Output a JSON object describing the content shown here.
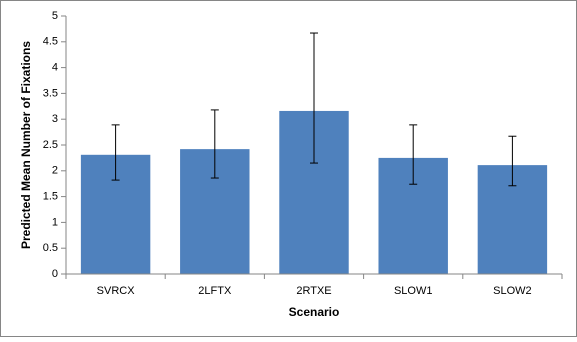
{
  "chart_data": {
    "type": "bar",
    "xlabel": "Scenario",
    "ylabel": "Predicted Mean Number of Fixations",
    "categories": [
      "SVRCX",
      "2LFTX",
      "2RTXE",
      "SLOW1",
      "SLOW2"
    ],
    "values": [
      2.31,
      2.42,
      3.16,
      2.25,
      2.11
    ],
    "error_low": [
      1.82,
      1.86,
      2.15,
      1.74,
      1.71
    ],
    "error_high": [
      2.89,
      3.18,
      4.67,
      2.89,
      2.67
    ],
    "color": "#4f81bd",
    "ylim": [
      0,
      5
    ],
    "yticks": [
      0,
      0.5,
      1,
      1.5,
      2,
      2.5,
      3,
      3.5,
      4,
      4.5,
      5
    ],
    "grid": false
  }
}
